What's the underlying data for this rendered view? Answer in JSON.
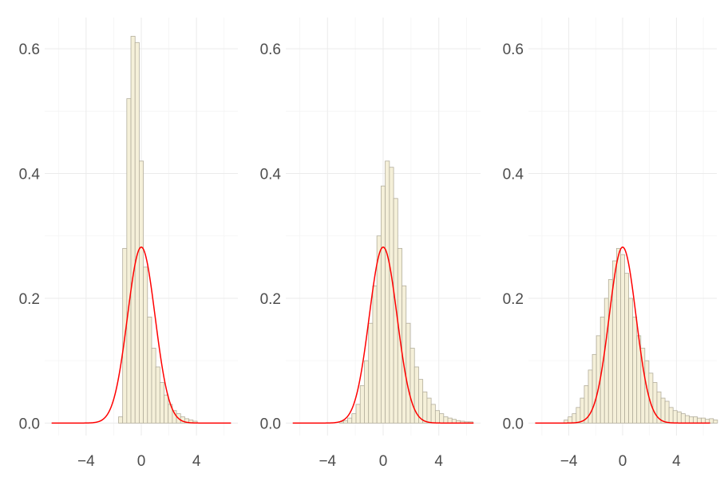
{
  "colors": {
    "bar_fill": "#f5f0d9",
    "bar_stroke": "#b3ae9c",
    "curve": "#ff0000",
    "grid": "#ebebeb",
    "tick_text": "#4d4d4d"
  },
  "chart_data": [
    {
      "type": "bar",
      "title": "",
      "xlabel": "",
      "ylabel": "",
      "xlim": [
        -7,
        7
      ],
      "ylim": [
        -0.02,
        0.65
      ],
      "x_ticks": [
        -4,
        0,
        4
      ],
      "x_tick_labels": [
        "−4",
        "0",
        "4"
      ],
      "y_ticks": [
        0,
        0.2,
        0.4,
        0.6
      ],
      "y_tick_labels": [
        "0.0",
        "0.2",
        "0.4",
        "0.6"
      ],
      "grid": true,
      "bin_width": 0.3,
      "bin_start": -1.65,
      "values": [
        0.01,
        0.28,
        0.52,
        0.62,
        0.61,
        0.42,
        0.25,
        0.17,
        0.12,
        0.09,
        0.065,
        0.045,
        0.03,
        0.02,
        0.015,
        0.01,
        0.007,
        0.005,
        0.003
      ],
      "density_curve": {
        "type": "normal",
        "mean": 0,
        "peak": 0.282
      }
    },
    {
      "type": "bar",
      "title": "",
      "xlabel": "",
      "ylabel": "",
      "xlim": [
        -7,
        7
      ],
      "ylim": [
        -0.02,
        0.65
      ],
      "x_ticks": [
        -4,
        0,
        4
      ],
      "x_tick_labels": [
        "−4",
        "0",
        "4"
      ],
      "y_ticks": [
        0,
        0.2,
        0.4,
        0.6
      ],
      "y_tick_labels": [
        "0.0",
        "0.2",
        "0.4",
        "0.6"
      ],
      "grid": true,
      "bin_width": 0.3,
      "bin_start": -3.15,
      "values": [
        0.002,
        0.004,
        0.008,
        0.015,
        0.03,
        0.06,
        0.1,
        0.16,
        0.22,
        0.3,
        0.38,
        0.42,
        0.41,
        0.36,
        0.28,
        0.22,
        0.16,
        0.12,
        0.09,
        0.07,
        0.05,
        0.04,
        0.03,
        0.02,
        0.015,
        0.01,
        0.008,
        0.006,
        0.004,
        0.003,
        0.002,
        0.002
      ],
      "density_curve": {
        "type": "normal",
        "mean": 0,
        "peak": 0.282
      }
    },
    {
      "type": "bar",
      "title": "",
      "xlabel": "",
      "ylabel": "",
      "xlim": [
        -7,
        7
      ],
      "ylim": [
        -0.02,
        0.65
      ],
      "x_ticks": [
        -4,
        0,
        4
      ],
      "x_tick_labels": [
        "−4",
        "0",
        "4"
      ],
      "y_ticks": [
        0,
        0.2,
        0.4,
        0.6
      ],
      "y_tick_labels": [
        "0.0",
        "0.2",
        "0.4",
        "0.6"
      ],
      "grid": true,
      "bin_width": 0.3,
      "bin_start": -4.35,
      "values": [
        0.005,
        0.01,
        0.015,
        0.025,
        0.04,
        0.06,
        0.085,
        0.11,
        0.14,
        0.17,
        0.2,
        0.23,
        0.26,
        0.28,
        0.27,
        0.24,
        0.2,
        0.17,
        0.14,
        0.12,
        0.1,
        0.08,
        0.065,
        0.05,
        0.04,
        0.035,
        0.025,
        0.02,
        0.018,
        0.015,
        0.012,
        0.01,
        0.01,
        0.008,
        0.008,
        0.006,
        0.007,
        0.005
      ],
      "density_curve": {
        "type": "normal",
        "mean": 0,
        "peak": 0.282
      }
    }
  ]
}
